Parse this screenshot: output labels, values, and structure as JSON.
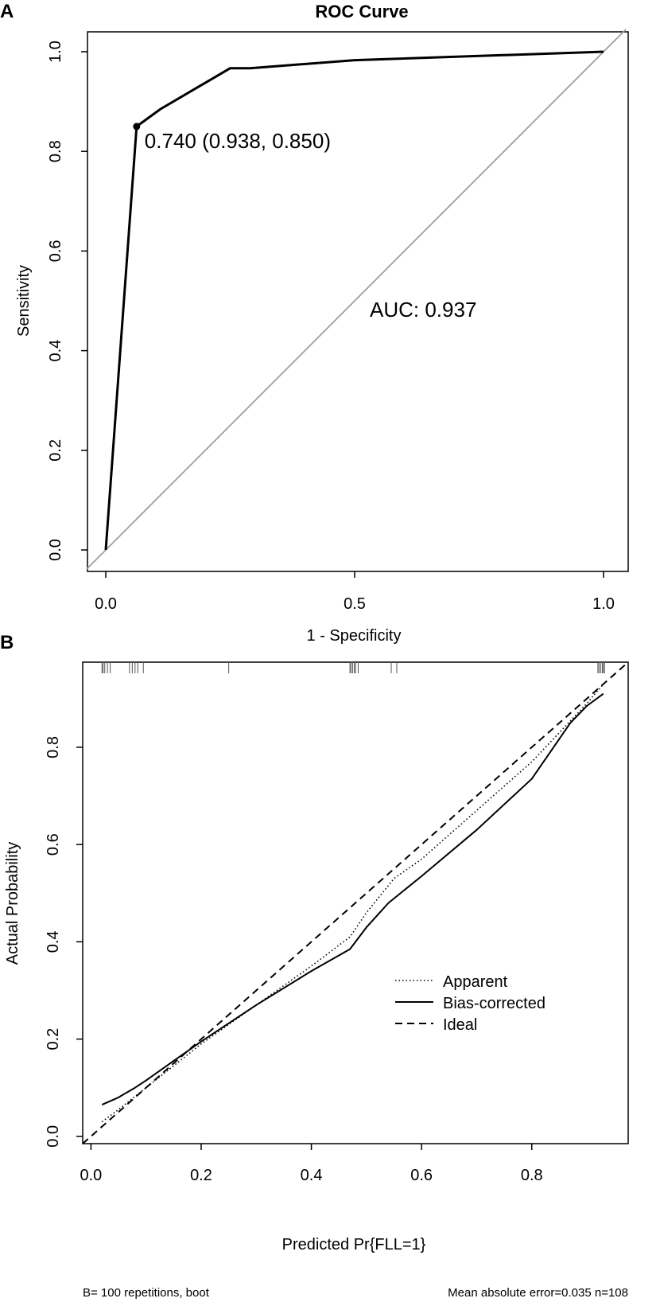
{
  "panel_a_label": "A",
  "panel_b_label": "B",
  "chart_data": [
    {
      "type": "line",
      "title": "ROC Curve",
      "xlabel": "1 - Specificity",
      "ylabel": "Sensitivity",
      "xlim": [
        0,
        1
      ],
      "ylim": [
        0,
        1
      ],
      "x_ticks": [
        0.0,
        0.5,
        1.0
      ],
      "x_tick_labels": [
        "0.0",
        "0.5",
        "1.0"
      ],
      "y_ticks": [
        0.0,
        0.2,
        0.4,
        0.6,
        0.8,
        1.0
      ],
      "y_tick_labels": [
        "0.0",
        "0.2",
        "0.4",
        "0.6",
        "0.8",
        "1.0"
      ],
      "series": [
        {
          "name": "ROC",
          "x": [
            0.0,
            0.062,
            0.11,
            0.25,
            0.29,
            0.5,
            1.0
          ],
          "y": [
            0.0,
            0.85,
            0.885,
            0.967,
            0.967,
            0.983,
            1.0
          ]
        },
        {
          "name": "Reference",
          "x": [
            0,
            1
          ],
          "y": [
            0,
            1
          ],
          "color": "#9e9e9e"
        }
      ],
      "threshold_point": {
        "x": 0.062,
        "y": 0.85
      },
      "threshold_label": "0.740 (0.938, 0.850)",
      "auc_label": "AUC: 0.937"
    },
    {
      "type": "line",
      "title": "",
      "xlabel": "Predicted Pr{FLL=1}",
      "ylabel": "Actual Probability",
      "xlim": [
        -0.015,
        0.975
      ],
      "ylim": [
        -0.015,
        0.975
      ],
      "x_ticks": [
        0.0,
        0.2,
        0.4,
        0.6,
        0.8
      ],
      "x_tick_labels": [
        "0.0",
        "0.2",
        "0.4",
        "0.6",
        "0.8"
      ],
      "y_ticks": [
        0.0,
        0.2,
        0.4,
        0.6,
        0.8
      ],
      "y_tick_labels": [
        "0.0",
        "0.2",
        "0.4",
        "0.6",
        "0.8"
      ],
      "series": [
        {
          "name": "Apparent",
          "style": "dotted",
          "x": [
            0.02,
            0.05,
            0.1,
            0.2,
            0.3,
            0.4,
            0.47,
            0.5,
            0.55,
            0.6,
            0.7,
            0.8,
            0.9,
            0.93
          ],
          "y": [
            0.03,
            0.055,
            0.1,
            0.19,
            0.27,
            0.35,
            0.41,
            0.46,
            0.53,
            0.57,
            0.67,
            0.77,
            0.89,
            0.93
          ]
        },
        {
          "name": "Bias-corrected",
          "style": "solid",
          "x": [
            0.02,
            0.05,
            0.08,
            0.1,
            0.15,
            0.2,
            0.3,
            0.4,
            0.47,
            0.5,
            0.54,
            0.6,
            0.7,
            0.8,
            0.87,
            0.9,
            0.93
          ],
          "y": [
            0.065,
            0.08,
            0.1,
            0.115,
            0.155,
            0.195,
            0.27,
            0.34,
            0.385,
            0.43,
            0.48,
            0.535,
            0.63,
            0.735,
            0.85,
            0.885,
            0.91
          ]
        },
        {
          "name": "Ideal",
          "style": "dashed",
          "x": [
            -0.015,
            0.975
          ],
          "y": [
            -0.015,
            0.975
          ]
        }
      ],
      "rug": [
        0.02,
        0.022,
        0.025,
        0.03,
        0.035,
        0.07,
        0.075,
        0.08,
        0.085,
        0.095,
        0.25,
        0.47,
        0.472,
        0.475,
        0.478,
        0.48,
        0.485,
        0.545,
        0.555,
        0.92,
        0.922,
        0.925,
        0.928,
        0.93,
        0.932
      ],
      "legend": [
        "Apparent",
        "Bias-corrected",
        "Ideal"
      ],
      "legend_position": "bottom-right",
      "footnote_left": "B= 100 repetitions, boot",
      "footnote_right": "Mean absolute error=0.035 n=108"
    }
  ]
}
